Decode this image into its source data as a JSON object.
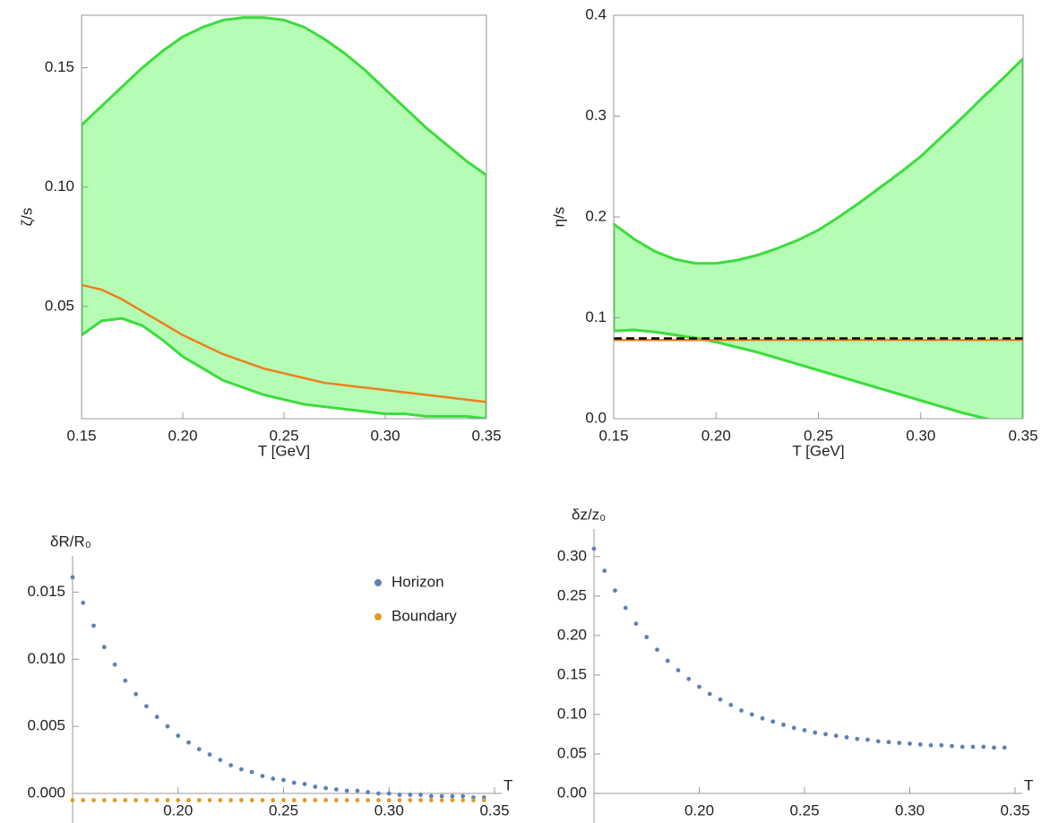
{
  "chart_data": [
    {
      "type": "area",
      "xlabel": "T [GeV]",
      "ylabel": "ζ/s",
      "x": [
        0.15,
        0.16,
        0.17,
        0.18,
        0.19,
        0.2,
        0.21,
        0.22,
        0.23,
        0.24,
        0.25,
        0.26,
        0.27,
        0.28,
        0.29,
        0.3,
        0.31,
        0.32,
        0.33,
        0.34,
        0.35
      ],
      "band": {
        "color": "#3ddc3d",
        "fill": "#b5fdb5",
        "upper": [
          0.126,
          0.134,
          0.142,
          0.15,
          0.157,
          0.163,
          0.167,
          0.17,
          0.171,
          0.171,
          0.17,
          0.167,
          0.162,
          0.156,
          0.149,
          0.141,
          0.133,
          0.125,
          0.118,
          0.111,
          0.105
        ],
        "lower": [
          0.038,
          0.044,
          0.045,
          0.042,
          0.036,
          0.029,
          0.024,
          0.019,
          0.016,
          0.013,
          0.011,
          0.009,
          0.008,
          0.007,
          0.006,
          0.005,
          0.005,
          0.004,
          0.004,
          0.004,
          0.003
        ]
      },
      "series": [
        {
          "color": "#ee7f1d",
          "values": [
            0.059,
            0.057,
            0.053,
            0.048,
            0.043,
            0.038,
            0.034,
            0.03,
            0.027,
            0.024,
            0.022,
            0.02,
            0.018,
            0.017,
            0.016,
            0.015,
            0.014,
            0.013,
            0.012,
            0.011,
            0.01
          ]
        }
      ],
      "xlim": [
        0.15,
        0.35
      ],
      "ylim": [
        0.003,
        0.172
      ],
      "xticks": [
        0.15,
        {
          "value": 0.2,
          "label": "0.20"
        },
        0.25,
        {
          "value": 0.3,
          "label": "0.30"
        },
        0.35
      ],
      "yticks": [
        0.05,
        {
          "value": 0.1,
          "label": "0.10"
        },
        0.15
      ],
      "frame": true
    },
    {
      "type": "area",
      "xlabel": "T [GeV]",
      "ylabel": "η/s",
      "x": [
        0.15,
        0.16,
        0.17,
        0.18,
        0.19,
        0.2,
        0.21,
        0.22,
        0.23,
        0.24,
        0.25,
        0.26,
        0.27,
        0.28,
        0.29,
        0.3,
        0.31,
        0.32,
        0.33,
        0.34,
        0.35
      ],
      "band": {
        "color": "#3ddc3d",
        "fill": "#b5fdb5",
        "upper": [
          0.193,
          0.178,
          0.166,
          0.158,
          0.154,
          0.154,
          0.157,
          0.162,
          0.169,
          0.177,
          0.187,
          0.2,
          0.214,
          0.229,
          0.244,
          0.26,
          0.279,
          0.298,
          0.318,
          0.337,
          0.357
        ],
        "lower": [
          0.087,
          0.088,
          0.086,
          0.083,
          0.08,
          0.076,
          0.071,
          0.066,
          0.06,
          0.054,
          0.048,
          0.042,
          0.036,
          0.03,
          0.024,
          0.018,
          0.012,
          0.006,
          0.001,
          -0.004,
          -0.008
        ]
      },
      "series": [
        {
          "color": "#ee7f1d",
          "values": [
            0.078,
            0.078,
            0.078,
            0.078,
            0.078,
            0.078,
            0.078,
            0.078,
            0.078,
            0.078,
            0.078,
            0.078,
            0.078,
            0.078,
            0.078,
            0.078,
            0.078,
            0.078,
            0.078,
            0.078,
            0.078
          ]
        },
        {
          "color": "#000000",
          "dashed": true,
          "values": [
            0.0796,
            0.0796,
            0.0796,
            0.0796,
            0.0796,
            0.0796,
            0.0796,
            0.0796,
            0.0796,
            0.0796,
            0.0796,
            0.0796,
            0.0796,
            0.0796,
            0.0796,
            0.0796,
            0.0796,
            0.0796,
            0.0796,
            0.0796,
            0.0796
          ]
        }
      ],
      "xlim": [
        0.15,
        0.35
      ],
      "ylim": [
        0,
        0.4
      ],
      "xticks": [
        0.15,
        {
          "value": 0.2,
          "label": "0.20"
        },
        0.25,
        {
          "value": 0.3,
          "label": "0.30"
        },
        0.35
      ],
      "yticks": [
        {
          "value": 0,
          "label": "0.0"
        },
        0.1,
        0.2,
        0.3,
        0.4
      ],
      "frame": true
    },
    {
      "type": "scatter",
      "xlabel": "T",
      "ylabel": "δR/R₀",
      "legend": "top-right",
      "x": [
        0.15,
        0.155,
        0.16,
        0.165,
        0.17,
        0.175,
        0.18,
        0.185,
        0.19,
        0.195,
        0.2,
        0.205,
        0.21,
        0.215,
        0.22,
        0.225,
        0.23,
        0.235,
        0.24,
        0.245,
        0.25,
        0.255,
        0.26,
        0.265,
        0.27,
        0.275,
        0.28,
        0.285,
        0.29,
        0.295,
        0.3,
        0.305,
        0.31,
        0.315,
        0.32,
        0.325,
        0.33,
        0.335,
        0.34,
        0.345
      ],
      "series": [
        {
          "name": "Horizon",
          "color": "#5e81b5",
          "values": [
            0.0161,
            0.0142,
            0.0125,
            0.0109,
            0.0096,
            0.0084,
            0.0074,
            0.0065,
            0.0057,
            0.005,
            0.0043,
            0.0038,
            0.0033,
            0.0029,
            0.0025,
            0.0021,
            0.0018,
            0.0016,
            0.0013,
            0.0011,
            0.001,
            0.0008,
            0.0007,
            0.0005,
            0.0004,
            0.0003,
            0.0002,
            0.0002,
            0.0001,
            0,
            0,
            -0.0001,
            -0.0001,
            -0.0001,
            -0.0002,
            -0.0002,
            -0.0002,
            -0.0002,
            -0.0003,
            -0.0003
          ]
        },
        {
          "name": "Boundary",
          "color": "#e19c24",
          "values": [
            -0.0005,
            -0.0005,
            -0.0005,
            -0.0005,
            -0.0005,
            -0.0005,
            -0.0005,
            -0.0005,
            -0.0005,
            -0.0005,
            -0.0005,
            -0.0005,
            -0.0005,
            -0.0005,
            -0.0005,
            -0.0005,
            -0.0005,
            -0.0005,
            -0.0005,
            -0.0005,
            -0.0005,
            -0.0005,
            -0.0005,
            -0.0005,
            -0.0005,
            -0.0005,
            -0.0005,
            -0.0005,
            -0.0005,
            -0.0005,
            -0.0005,
            -0.0005,
            -0.0005,
            -0.0005,
            -0.0005,
            -0.0005,
            -0.0005,
            -0.0005,
            -0.0005,
            -0.0005
          ]
        }
      ],
      "xlim": [
        0.15,
        0.35
      ],
      "ylim": [
        -0.0022,
        0.0177
      ],
      "xticks": [
        {
          "value": 0.2,
          "label": "0.20"
        },
        0.25,
        {
          "value": 0.3,
          "label": "0.30"
        },
        0.35
      ],
      "yticks": [
        {
          "value": 0,
          "label": "0.000"
        },
        {
          "value": 0.005,
          "label": "0.005"
        },
        {
          "value": 0.01,
          "label": "0.010"
        },
        {
          "value": 0.015,
          "label": "0.015"
        }
      ],
      "frame": false
    },
    {
      "type": "scatter",
      "xlabel": "T",
      "ylabel": "δz/z₀",
      "x": [
        0.15,
        0.155,
        0.16,
        0.165,
        0.17,
        0.175,
        0.18,
        0.185,
        0.19,
        0.195,
        0.2,
        0.205,
        0.21,
        0.215,
        0.22,
        0.225,
        0.23,
        0.235,
        0.24,
        0.245,
        0.25,
        0.255,
        0.26,
        0.265,
        0.27,
        0.275,
        0.28,
        0.285,
        0.29,
        0.295,
        0.3,
        0.305,
        0.31,
        0.315,
        0.32,
        0.325,
        0.33,
        0.335,
        0.34,
        0.345
      ],
      "series": [
        {
          "color": "#5e81b5",
          "values": [
            0.31,
            0.282,
            0.257,
            0.235,
            0.215,
            0.198,
            0.182,
            0.168,
            0.156,
            0.145,
            0.135,
            0.126,
            0.119,
            0.112,
            0.105,
            0.1,
            0.095,
            0.091,
            0.087,
            0.083,
            0.08,
            0.077,
            0.075,
            0.073,
            0.071,
            0.069,
            0.068,
            0.066,
            0.065,
            0.064,
            0.063,
            0.062,
            0.061,
            0.061,
            0.06,
            0.059,
            0.059,
            0.059,
            0.058,
            0.058
          ]
        }
      ],
      "xlim": [
        0.15,
        0.35
      ],
      "ylim": [
        -0.0375,
        0.335
      ],
      "xticks": [
        {
          "value": 0.2,
          "label": "0.20"
        },
        0.25,
        {
          "value": 0.3,
          "label": "0.30"
        },
        0.35
      ],
      "yticks": [
        {
          "value": 0,
          "label": "0.00"
        },
        0.05,
        {
          "value": 0.1,
          "label": "0.10"
        },
        0.15,
        {
          "value": 0.2,
          "label": "0.20"
        },
        0.25,
        {
          "value": 0.3,
          "label": "0.30"
        }
      ],
      "frame": false
    }
  ]
}
